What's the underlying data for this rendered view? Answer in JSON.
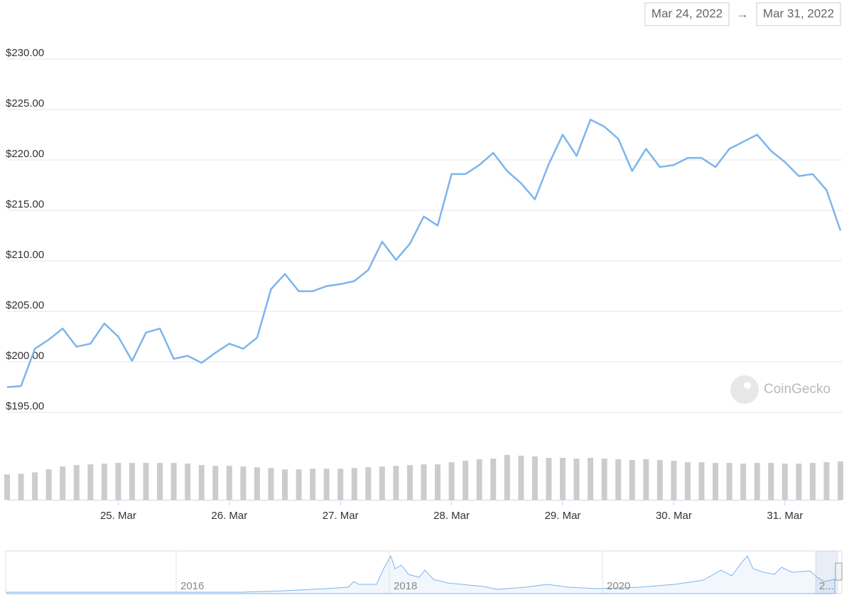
{
  "chart_data": {
    "type": "line",
    "range_from": "Mar 24, 2022",
    "range_arrow": "→",
    "range_to": "Mar 31, 2022",
    "watermark": "CoinGecko",
    "x": [
      24,
      24.125,
      24.25,
      24.375,
      24.5,
      24.625,
      24.75,
      24.875,
      25,
      25.125,
      25.25,
      25.375,
      25.5,
      25.625,
      25.75,
      25.875,
      26,
      26.125,
      26.25,
      26.375,
      26.5,
      26.625,
      26.75,
      26.875,
      27,
      27.125,
      27.25,
      27.375,
      27.5,
      27.625,
      27.75,
      27.875,
      28,
      28.125,
      28.25,
      28.375,
      28.5,
      28.625,
      28.75,
      28.875,
      29,
      29.125,
      29.25,
      29.375,
      29.5,
      29.625,
      29.75,
      29.875,
      30,
      30.125,
      30.25,
      30.375,
      30.5,
      30.625,
      30.75,
      30.875,
      31,
      31.125,
      31.25,
      31.375,
      31.5
    ],
    "series": [
      {
        "name": "Price",
        "color": "#7cb5ec",
        "values": [
          197.5,
          197.6,
          201.3,
          202.2,
          203.3,
          201.5,
          201.8,
          203.8,
          202.5,
          200.1,
          202.9,
          203.3,
          200.3,
          200.6,
          199.9,
          200.9,
          201.8,
          201.3,
          202.4,
          207.2,
          208.7,
          207.0,
          207.0,
          207.5,
          207.7,
          208.0,
          209.1,
          211.9,
          210.1,
          211.7,
          214.4,
          213.5,
          218.6,
          218.6,
          219.5,
          220.7,
          218.9,
          217.7,
          216.1,
          219.6,
          222.5,
          220.4,
          224.0,
          223.3,
          222.1,
          218.9,
          221.1,
          219.3,
          219.5,
          220.2,
          220.2,
          219.3,
          221.1,
          221.8,
          222.5,
          220.9,
          219.8,
          218.4,
          218.6,
          217.0,
          213.0
        ]
      },
      {
        "name": "Volume",
        "color": "#cccccc",
        "values": [
          35,
          36,
          38,
          42,
          46,
          48,
          49,
          50,
          51,
          51,
          51,
          51,
          51,
          50,
          48,
          47,
          47,
          46,
          45,
          44,
          42,
          42,
          43,
          43,
          43,
          44,
          45,
          46,
          47,
          48,
          49,
          49,
          52,
          54,
          56,
          57,
          62,
          61,
          60,
          58,
          58,
          57,
          58,
          57,
          56,
          55,
          56,
          55,
          54,
          52,
          52,
          51,
          51,
          50,
          51,
          51,
          50,
          50,
          51,
          52,
          53
        ]
      }
    ],
    "xlim": [
      24,
      31.5
    ],
    "xticks": [
      {
        "value": 25,
        "label": "25. Mar"
      },
      {
        "value": 26,
        "label": "26. Mar"
      },
      {
        "value": 27,
        "label": "27. Mar"
      },
      {
        "value": 28,
        "label": "28. Mar"
      },
      {
        "value": 29,
        "label": "29. Mar"
      },
      {
        "value": 30,
        "label": "30. Mar"
      },
      {
        "value": 31,
        "label": "31. Mar"
      }
    ],
    "ylim": [
      195,
      230
    ],
    "yticks": [
      {
        "value": 195,
        "label": "$195.00"
      },
      {
        "value": 200,
        "label": "$200.00"
      },
      {
        "value": 205,
        "label": "$205.00"
      },
      {
        "value": 210,
        "label": "$210.00"
      },
      {
        "value": 215,
        "label": "$215.00"
      },
      {
        "value": 220,
        "label": "$220.00"
      },
      {
        "value": 225,
        "label": "$225.00"
      },
      {
        "value": 230,
        "label": "$230.00"
      }
    ],
    "grid": true,
    "navigator_labels": [
      "2016",
      "2018",
      "2020",
      "2..."
    ]
  }
}
